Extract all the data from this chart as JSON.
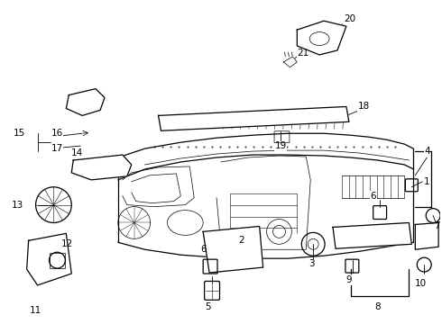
{
  "bg_color": "#ffffff",
  "line_color": "#000000",
  "label_color": "#000000",
  "font_size_labels": 7.5,
  "figsize": [
    4.9,
    3.6
  ],
  "dpi": 100
}
